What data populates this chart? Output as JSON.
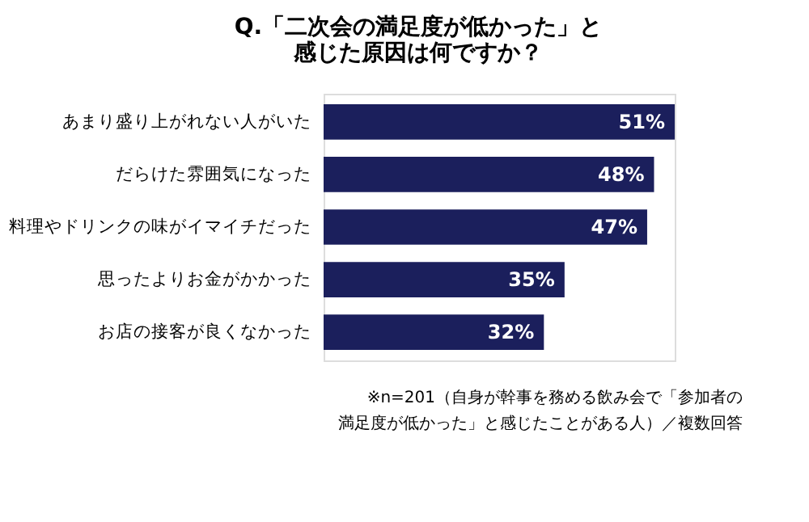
{
  "chart_data": {
    "type": "bar",
    "orientation": "horizontal",
    "title": [
      "Q.「二次会の満足度が低かった」と",
      "感じた原因は何ですか？"
    ],
    "categories": [
      "あまり盛り上がれない人がいた",
      "だらけた雰囲気になった",
      "料理やドリンクの味がイマイチだった",
      "思ったよりお金がかかった",
      "お店の接客が良くなかった"
    ],
    "values": [
      51,
      48,
      47,
      35,
      32
    ],
    "value_labels": [
      "51%",
      "48%",
      "47%",
      "35%",
      "32%"
    ],
    "color": "#1b1f5c",
    "tick_labels": "y",
    "annotations": [
      "※n=201（自身が幹事を務める飲み会で「参加者の",
      "満足度が低かった」と感じたことがある人）／複数回答"
    ]
  }
}
